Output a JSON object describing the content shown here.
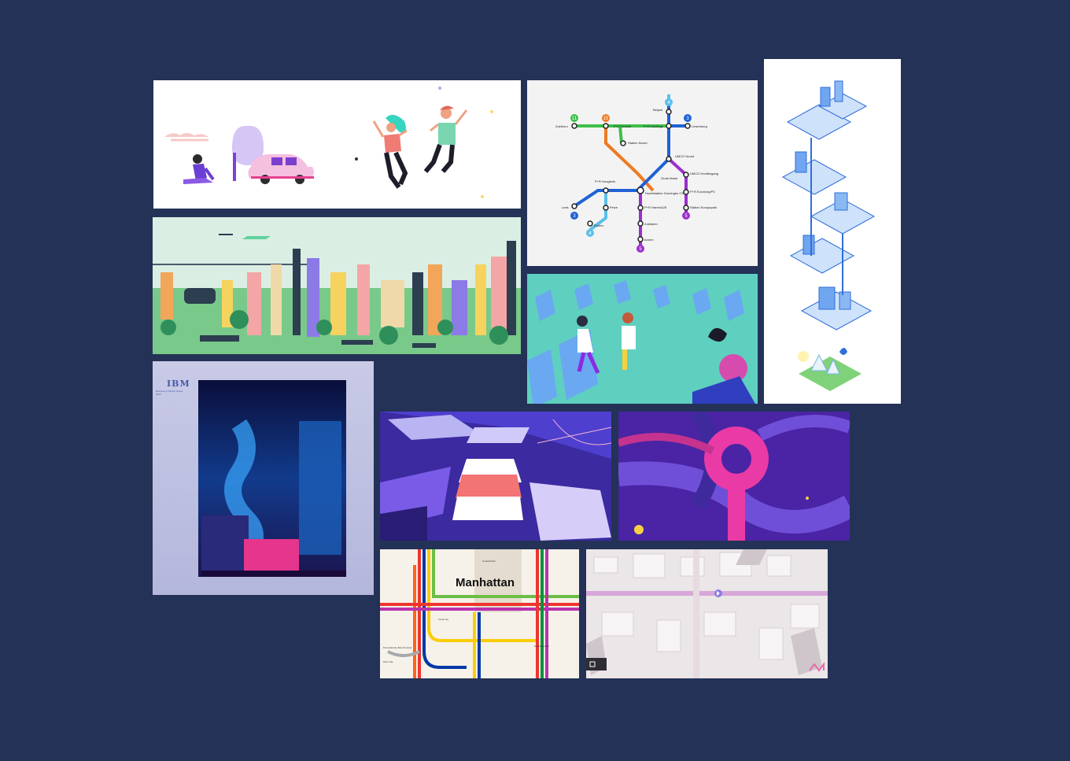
{
  "moodboard": {
    "background_color": "#233256",
    "tiles": [
      {
        "id": "people-car",
        "bg": "#ffffff"
      },
      {
        "id": "metro-map",
        "bg": "#f3f3f3"
      },
      {
        "id": "isometric-city",
        "bg": "#ffffff"
      },
      {
        "id": "city-skyline",
        "bg": "#dbeee4"
      },
      {
        "id": "train-cabin",
        "bg": "#4fc2b6"
      },
      {
        "id": "ibm-poster",
        "bg": "#c4c6e2"
      },
      {
        "id": "purple-road",
        "bg": "#3a2a93"
      },
      {
        "id": "pink-loop",
        "bg": "#4b26a6"
      },
      {
        "id": "subway-map",
        "bg": "#f4efe7"
      },
      {
        "id": "pale-map",
        "bg": "#e9e3e6"
      }
    ]
  },
  "metro_map": {
    "stations": {
      "beijum": "Beijum",
      "zuidhorn": "Zuidhorn",
      "zernike": "P+R Zernike",
      "kardinge": "P+R Kardinge",
      "lewenborg": "Lewenborg",
      "station_noord": "Station Noord",
      "umcg_noord": "UMCG Noord",
      "umcg_hoofdingang": "UMCG Hoofdingang",
      "hoogkerk": "P+R Hoogkerk",
      "grote_markt": "Grote Markt",
      "hoofdstation": "Hoofdstation Groningen CS",
      "euroborg": "P+R Euroborg/P3",
      "station_europapark": "Station Europapark",
      "leek": "Leek",
      "peize": "Peize",
      "haren": "P+R Haren/A28",
      "roden": "Roden",
      "zuidlaren": "Zuidlaren",
      "annen": "Annen"
    },
    "line_numbers": {
      "l11": "11",
      "l15": "15",
      "l4top": "4",
      "l3": "3",
      "l3left": "3",
      "l4bottom": "4",
      "l5right": "5",
      "l5bottom": "5"
    }
  },
  "ibm_poster": {
    "logo": "IBM",
    "caption": "Business in Motion Series 2014"
  },
  "subway_map": {
    "title": "Manhattan",
    "labels": {
      "central_park": "Central Park",
      "penn": "Penn Sta",
      "grand_central": "Grand Central",
      "port_authority": "Port Authority Bus Terminal",
      "times_sq": "Times Sq"
    }
  }
}
